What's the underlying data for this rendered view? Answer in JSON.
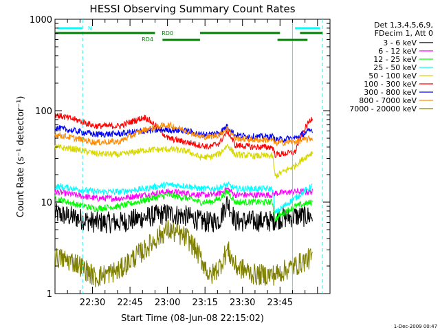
{
  "chart_data": {
    "type": "line",
    "title": "HESSI Observing Summary Count Rates",
    "xlabel": "Start Time (08-Jun-08 22:15:02)",
    "ylabel": "Count Rate (s⁻¹ detector⁻¹)",
    "yscale": "log",
    "ylim": [
      1,
      1000
    ],
    "xlim_minutes_after_start": [
      0,
      110
    ],
    "y_ticks": [
      {
        "label": "1",
        "value": 1
      },
      {
        "label": "10",
        "value": 10
      },
      {
        "label": "100",
        "value": 100
      },
      {
        "label": "1000",
        "value": 1000
      }
    ],
    "x_ticks": [
      {
        "label": "22:30",
        "minutes": 15
      },
      {
        "label": "22:45",
        "minutes": 30
      },
      {
        "label": "23:00",
        "minutes": 45
      },
      {
        "label": "23:15",
        "minutes": 60
      },
      {
        "label": "23:30",
        "minutes": 75
      },
      {
        "label": "23:45",
        "minutes": 90
      }
    ],
    "legend_header": [
      "Det 1,3,4,5,6,9,",
      "FDecim 1, Att 0"
    ],
    "legend_position": "right",
    "series": [
      {
        "name": "3 - 6 keV",
        "color": "#000000",
        "x": [
          0,
          8,
          16,
          26,
          36,
          45,
          53,
          58,
          62,
          66,
          69,
          72,
          80,
          87,
          88,
          96,
          103
        ],
        "y": [
          7.5,
          6.8,
          6,
          6,
          6.8,
          7.5,
          7,
          6.2,
          6,
          6.5,
          10,
          6.2,
          6.2,
          6.2,
          6.5,
          7,
          7
        ]
      },
      {
        "name": "6 - 12 keV",
        "color": "#ff00ff",
        "x": [
          0,
          8,
          16,
          26,
          36,
          45,
          53,
          58,
          62,
          66,
          69,
          72,
          80,
          87,
          88,
          96,
          103
        ],
        "y": [
          13,
          12,
          11,
          11,
          12,
          13,
          12.5,
          12,
          12,
          12.5,
          14,
          12,
          12,
          12,
          12.5,
          13,
          13
        ]
      },
      {
        "name": "12 - 25 keV",
        "color": "#00ff00",
        "x": [
          0,
          8,
          16,
          26,
          36,
          45,
          53,
          58,
          62,
          66,
          69,
          72,
          80,
          87,
          88,
          96,
          103
        ],
        "y": [
          11,
          9.5,
          8.5,
          9,
          10.5,
          12,
          11,
          10,
          10,
          11,
          13,
          10,
          10,
          10,
          6.5,
          9,
          10
        ]
      },
      {
        "name": "25 - 50 keV",
        "color": "#00ffff",
        "x": [
          0,
          8,
          16,
          26,
          36,
          45,
          53,
          58,
          62,
          66,
          69,
          72,
          80,
          87,
          88,
          96,
          103
        ],
        "y": [
          15,
          14,
          13,
          13,
          14,
          15.5,
          15,
          14,
          14,
          14.5,
          15.5,
          14,
          14,
          14,
          7.5,
          11,
          15
        ]
      },
      {
        "name": "50 - 100 keV",
        "color": "#d8d800",
        "x": [
          0,
          8,
          16,
          26,
          36,
          45,
          53,
          58,
          62,
          66,
          69,
          72,
          80,
          87,
          88,
          96,
          103
        ],
        "y": [
          40,
          38,
          34,
          33,
          37,
          38,
          36,
          31,
          31,
          34,
          42,
          33,
          32,
          32,
          19,
          25,
          35
        ]
      },
      {
        "name": "100 - 300 keV",
        "color": "#ff0000",
        "x": [
          0,
          8,
          16,
          26,
          36,
          45,
          53,
          58,
          62,
          66,
          69,
          72,
          80,
          87,
          88,
          96,
          103
        ],
        "y": [
          90,
          80,
          68,
          68,
          85,
          50,
          45,
          42,
          40,
          45,
          60,
          42,
          40,
          40,
          33,
          35,
          85
        ]
      },
      {
        "name": "300 - 800 keV",
        "color": "#0000ff",
        "x": [
          0,
          8,
          16,
          26,
          36,
          45,
          53,
          58,
          62,
          66,
          69,
          72,
          80,
          87,
          88,
          96,
          103
        ],
        "y": [
          65,
          60,
          55,
          56,
          60,
          62,
          60,
          55,
          55,
          58,
          68,
          54,
          52,
          52,
          48,
          50,
          62
        ]
      },
      {
        "name": "800 - 7000 keV",
        "color": "#ff8c00",
        "x": [
          0,
          8,
          16,
          26,
          36,
          45,
          53,
          58,
          62,
          66,
          69,
          72,
          80,
          87,
          88,
          96,
          103
        ],
        "y": [
          55,
          50,
          45,
          46,
          62,
          70,
          60,
          52,
          52,
          55,
          65,
          50,
          48,
          48,
          44,
          46,
          50
        ]
      },
      {
        "name": "7000 - 20000 keV",
        "color": "#808000",
        "x": [
          0,
          8,
          16,
          26,
          36,
          45,
          53,
          58,
          62,
          66,
          69,
          72,
          80,
          87,
          88,
          96,
          103
        ],
        "y": [
          2.5,
          2.2,
          1.5,
          1.8,
          3,
          5,
          4,
          2.5,
          1.5,
          2,
          3,
          2,
          1.6,
          1.6,
          1.6,
          2,
          2.5
        ]
      }
    ],
    "annotations": {
      "attenuator_labels": [
        "N",
        "RD0",
        "RD4"
      ],
      "dashed_marker_minutes": [
        11,
        107
      ],
      "solid_marker_minutes": [
        95
      ]
    },
    "footer": "1-Dec-2009 00:47"
  }
}
